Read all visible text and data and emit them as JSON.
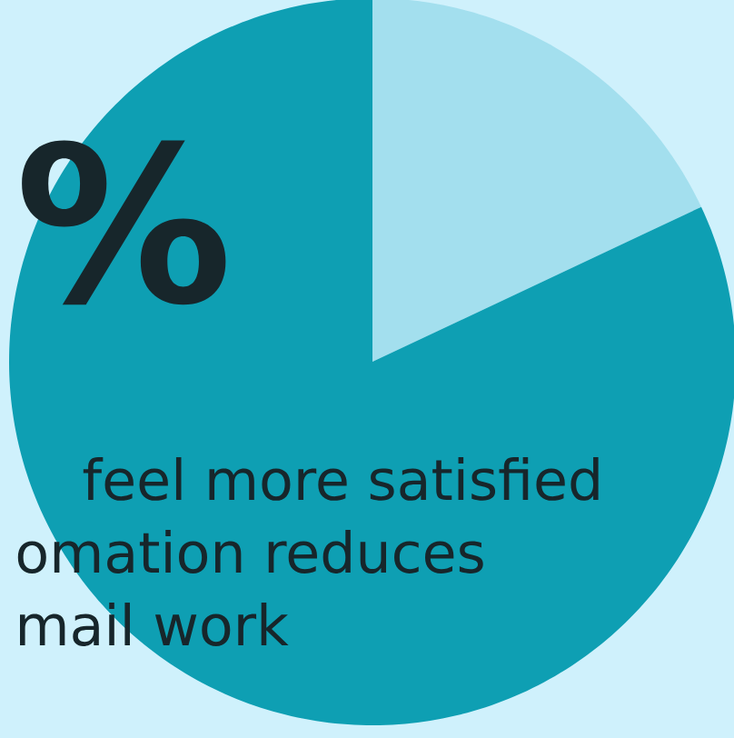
{
  "chart_data": {
    "type": "pie",
    "categories": [
      null,
      null
    ],
    "values": [
      18,
      82
    ],
    "colors": [
      "#a3dfee",
      "#0e9fb3"
    ],
    "annotations": [
      "%",
      "feel more satisfied",
      "omation reduces",
      "mail work"
    ]
  }
}
